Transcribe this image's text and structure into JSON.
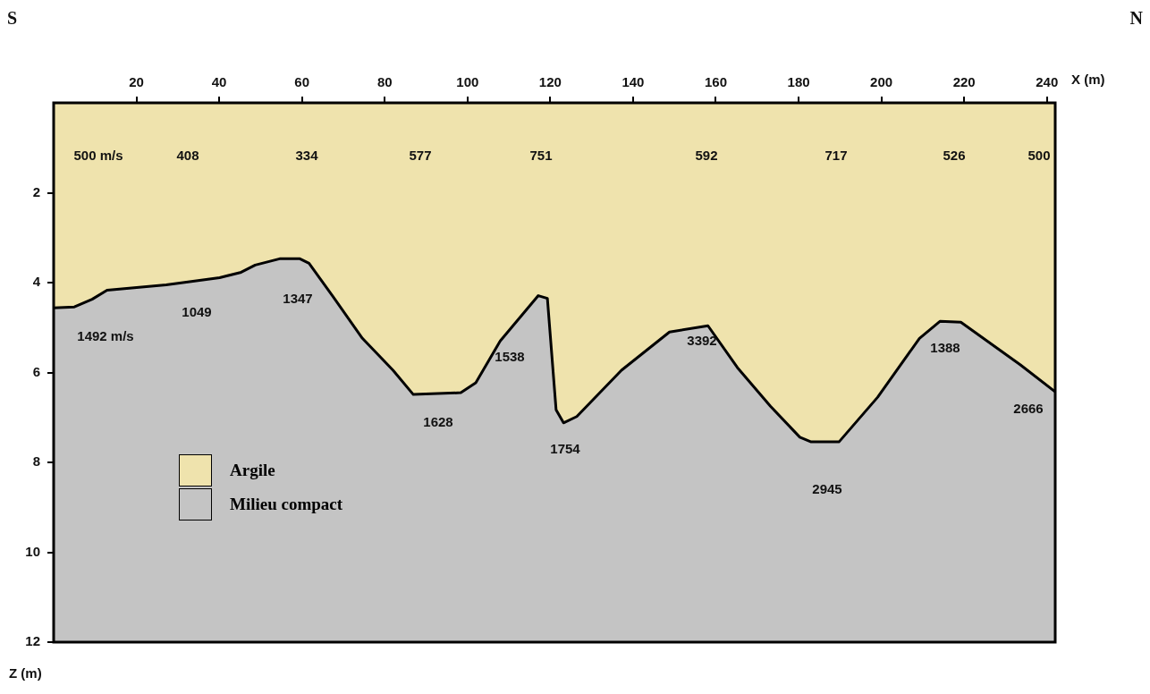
{
  "chart_data": {
    "type": "area",
    "stacked": true,
    "xlabel": "X (m)",
    "ylabel": "Z (m)",
    "x": [
      0,
      5,
      9.3,
      12.9,
      27.2,
      40.1,
      45.3,
      48.7,
      54.6,
      59.5,
      61.7,
      67.5,
      74.6,
      82,
      86.9,
      98.4,
      102,
      107.9,
      117.1,
      119.3,
      121.4,
      123.2,
      126.4,
      137.2,
      148.8,
      158.1,
      165.2,
      173.2,
      180.3,
      182.9,
      189.8,
      199.1,
      209.2,
      214.2,
      219.2,
      233.6,
      242
    ],
    "series": [
      {
        "name": "Argile",
        "color": "#efe3ad",
        "values": [
          4.56,
          4.54,
          4.37,
          4.17,
          4.05,
          3.89,
          3.77,
          3.61,
          3.47,
          3.47,
          3.57,
          4.31,
          5.24,
          5.95,
          6.49,
          6.45,
          6.23,
          5.3,
          4.29,
          4.35,
          6.83,
          7.12,
          6.98,
          5.95,
          5.1,
          4.96,
          5.89,
          6.75,
          7.44,
          7.54,
          7.54,
          6.55,
          5.24,
          4.86,
          4.88,
          5.83,
          6.43
        ]
      },
      {
        "name": "Milieu compact",
        "color": "#c4c4c4",
        "values": [
          7.44,
          7.46,
          7.63,
          7.83,
          7.95,
          8.11,
          8.23,
          8.39,
          8.53,
          8.53,
          8.43,
          7.69,
          6.76,
          6.05,
          5.51,
          5.55,
          5.77,
          6.7,
          7.71,
          7.65,
          5.17,
          4.88,
          5.02,
          6.05,
          6.9,
          7.04,
          6.11,
          5.25,
          4.56,
          4.46,
          4.46,
          5.45,
          6.76,
          7.14,
          7.12,
          6.17,
          5.57
        ]
      }
    ],
    "xlim": [
      0,
      242
    ],
    "xticks": [
      20,
      40,
      60,
      80,
      100,
      120,
      140,
      160,
      180,
      200,
      220,
      240
    ],
    "ylim": [
      12,
      0
    ],
    "yticks": [
      2,
      4,
      6,
      8,
      10,
      12
    ],
    "marker": "none",
    "legend": "bottom left",
    "annotations": [
      "S",
      "N",
      "500 m/s",
      "408",
      "334",
      "577",
      "751",
      "592",
      "717",
      "526",
      "500",
      "1492 m/s",
      "1049",
      "1347",
      "1628",
      "1538",
      "1754",
      "3392",
      "2945",
      "1388",
      "2666"
    ]
  }
}
